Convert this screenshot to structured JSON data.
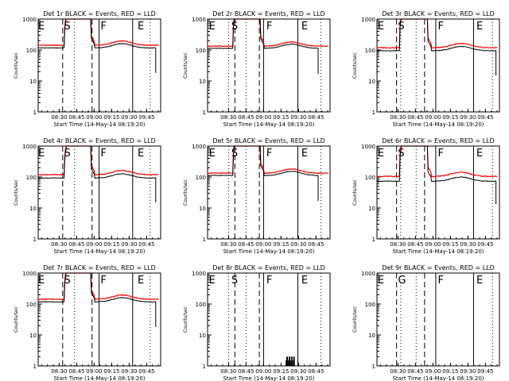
{
  "shared": {
    "xlabel": "Start Time (14-May-14 08:19:20)",
    "ylabel": "Counts/sec",
    "y_ticks": [
      "1",
      "10",
      "100",
      "1000"
    ],
    "ylim": [
      1,
      1000
    ],
    "y_scale": "log",
    "x_ticks_a": [
      "08:30",
      "08:45",
      "09:00",
      "09:15",
      "09:30",
      "09:45"
    ],
    "x_ticks_b": [
      "08:30",
      "08:45",
      "09:00",
      "09:15",
      "09:30",
      "08:45"
    ],
    "colors": {
      "events": "#000000",
      "lld": "#ff0000"
    }
  },
  "chart_data": [
    {
      "type": "line",
      "title": "Det 1r BLACK = Events, RED = LLD",
      "ticks": "a",
      "kind": "normal",
      "variant": 1,
      "base": 150,
      "ratio": 0.82,
      "region_labels": [
        "E",
        "S",
        "F",
        "E"
      ],
      "series": [
        {
          "name": "Events",
          "color": "#000000"
        },
        {
          "name": "LLD",
          "color": "#ff0000"
        }
      ]
    },
    {
      "type": "line",
      "title": "Det 2r BLACK = Events, RED = LLD",
      "ticks": "b",
      "kind": "normal",
      "variant": 2,
      "base": 140,
      "ratio": 0.85,
      "region_labels": [
        "E",
        "S",
        "F",
        "E"
      ],
      "series": [
        {
          "name": "Events",
          "color": "#000000"
        },
        {
          "name": "LLD",
          "color": "#ff0000"
        }
      ]
    },
    {
      "type": "line",
      "title": "Det 3r BLACK = Events, RED = LLD",
      "ticks": "a",
      "kind": "normal",
      "variant": 3,
      "base": 125,
      "ratio": 0.8,
      "region_labels": [
        "E",
        "S",
        "F",
        "E"
      ],
      "series": [
        {
          "name": "Events",
          "color": "#000000"
        },
        {
          "name": "LLD",
          "color": "#ff0000"
        }
      ]
    },
    {
      "type": "line",
      "title": "Det 4r BLACK = Events, RED = LLD",
      "ticks": "a",
      "kind": "normal",
      "variant": 1,
      "base": 125,
      "ratio": 0.78,
      "region_labels": [
        "E",
        "S",
        "F",
        "E"
      ],
      "series": [
        {
          "name": "Events",
          "color": "#000000"
        },
        {
          "name": "LLD",
          "color": "#ff0000"
        }
      ]
    },
    {
      "type": "line",
      "title": "Det 5r BLACK = Events, RED = LLD",
      "ticks": "b",
      "kind": "normal",
      "variant": 2,
      "base": 140,
      "ratio": 0.84,
      "region_labels": [
        "E",
        "S",
        "F",
        "E"
      ],
      "series": [
        {
          "name": "Events",
          "color": "#000000"
        },
        {
          "name": "LLD",
          "color": "#ff0000"
        }
      ]
    },
    {
      "type": "line",
      "title": "Det 6r BLACK = Events, RED = LLD",
      "ticks": "a",
      "kind": "normal",
      "variant": 3,
      "base": 110,
      "ratio": 0.7,
      "region_labels": [
        "E",
        "S",
        "F",
        "E"
      ],
      "series": [
        {
          "name": "Events",
          "color": "#000000"
        },
        {
          "name": "LLD",
          "color": "#ff0000"
        }
      ]
    },
    {
      "type": "line",
      "title": "Det 7r BLACK = Events, RED = LLD",
      "ticks": "a",
      "kind": "normal",
      "variant": 1,
      "base": 150,
      "ratio": 0.82,
      "region_labels": [
        "E",
        "S",
        "F",
        "E"
      ],
      "series": [
        {
          "name": "Events",
          "color": "#000000"
        },
        {
          "name": "LLD",
          "color": "#ff0000"
        }
      ]
    },
    {
      "type": "line",
      "title": "Det 8r BLACK = Events, RED = LLD",
      "ticks": "b",
      "kind": "spikes",
      "variant": 2,
      "region_labels": [
        "E",
        "S",
        "F",
        "E"
      ],
      "series": [
        {
          "name": "Events",
          "color": "#000000"
        }
      ]
    },
    {
      "type": "line",
      "title": "Det 9r BLACK = Events, RED = LLD",
      "ticks": "a",
      "kind": "empty",
      "variant": 3,
      "region_labels": [
        "E",
        "G",
        "F",
        "E"
      ],
      "series": []
    }
  ]
}
